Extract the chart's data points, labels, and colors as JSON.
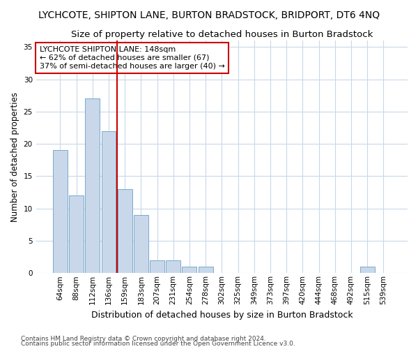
{
  "title1": "LYCHCOTE, SHIPTON LANE, BURTON BRADSTOCK, BRIDPORT, DT6 4NQ",
  "title2": "Size of property relative to detached houses in Burton Bradstock",
  "xlabel": "Distribution of detached houses by size in Burton Bradstock",
  "ylabel": "Number of detached properties",
  "categories": [
    "64sqm",
    "88sqm",
    "112sqm",
    "136sqm",
    "159sqm",
    "183sqm",
    "207sqm",
    "231sqm",
    "254sqm",
    "278sqm",
    "302sqm",
    "325sqm",
    "349sqm",
    "373sqm",
    "397sqm",
    "420sqm",
    "444sqm",
    "468sqm",
    "492sqm",
    "515sqm",
    "539sqm"
  ],
  "values": [
    19,
    12,
    27,
    22,
    13,
    9,
    2,
    2,
    1,
    1,
    0,
    0,
    0,
    0,
    0,
    0,
    0,
    0,
    0,
    1,
    0
  ],
  "bar_color": "#c8d8ea",
  "bar_edge_color": "#7aa8cc",
  "vline_x": 3.5,
  "vline_color": "#cc0000",
  "annotation_text": "LYCHCOTE SHIPTON LANE: 148sqm\n← 62% of detached houses are smaller (67)\n37% of semi-detached houses are larger (40) →",
  "annotation_box_color": "#ffffff",
  "annotation_box_edge": "#cc0000",
  "ylim": [
    0,
    36
  ],
  "yticks": [
    0,
    5,
    10,
    15,
    20,
    25,
    30,
    35
  ],
  "footnote1": "Contains HM Land Registry data © Crown copyright and database right 2024.",
  "footnote2": "Contains public sector information licensed under the Open Government Licence v3.0.",
  "bg_color": "#ffffff",
  "plot_bg_color": "#ffffff",
  "title1_fontsize": 10,
  "title2_fontsize": 9.5,
  "xlabel_fontsize": 9,
  "ylabel_fontsize": 8.5,
  "tick_fontsize": 7.5,
  "annot_fontsize": 8,
  "footnote_fontsize": 6.5
}
